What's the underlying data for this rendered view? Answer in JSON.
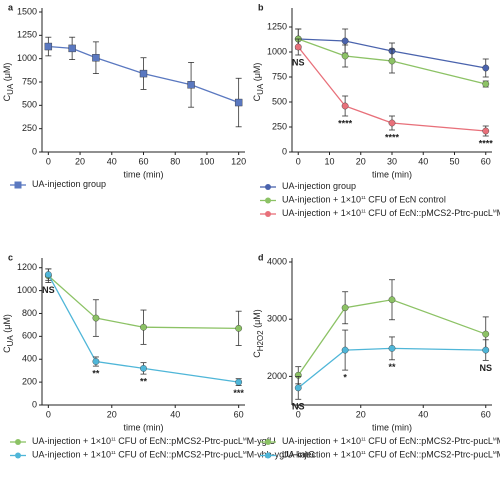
{
  "chart_data": [
    {
      "type": "line",
      "panel": "a",
      "x_label": "time (min)",
      "y_label": [
        "C",
        "UA",
        " (μM)"
      ],
      "x": [
        0,
        15,
        30,
        60,
        90,
        120
      ],
      "xlim": [
        -4,
        124
      ],
      "xticks": [
        0,
        20,
        40,
        60,
        80,
        100,
        120
      ],
      "ylim": [
        0,
        1500
      ],
      "yticks": [
        0,
        250,
        500,
        750,
        1000,
        1250,
        1500
      ],
      "marker": "square",
      "series": [
        {
          "name": [
            "UA-injection group"
          ],
          "color": "#5a78c0",
          "values": [
            1130,
            1110,
            1010,
            840,
            720,
            530
          ],
          "errors": [
            100,
            120,
            170,
            170,
            240,
            260
          ]
        }
      ],
      "annotations": []
    },
    {
      "type": "line",
      "panel": "b",
      "x_label": "time (min)",
      "y_label": [
        "C",
        "UA",
        " (μM)"
      ],
      "x": [
        0,
        15,
        30,
        60
      ],
      "xlim": [
        -2,
        62
      ],
      "xticks": [
        0,
        10,
        20,
        30,
        40,
        50,
        60
      ],
      "ylim": [
        0,
        1400
      ],
      "yticks": [
        0,
        250,
        500,
        750,
        1000,
        1250
      ],
      "marker": "circle",
      "series": [
        {
          "name": [
            "UA-injection group"
          ],
          "color": "#4a63ad",
          "values": [
            1130,
            1110,
            1010,
            840
          ],
          "errors": [
            100,
            120,
            80,
            90
          ]
        },
        {
          "name": [
            "UA-injection + 1×10",
            "11",
            " CFU of EcN control"
          ],
          "color": "#8cc265",
          "values": [
            1130,
            960,
            910,
            680
          ],
          "errors": [
            100,
            110,
            120,
            30
          ]
        },
        {
          "name": [
            "UA-injection + 1×10",
            "11",
            " CFU of EcN::pMCS2-Ptrc-pucL",
            "M",
            "M-vhb-ygfU-katG"
          ],
          "color": "#e8707a",
          "values": [
            1050,
            460,
            290,
            210
          ],
          "errors": [
            80,
            100,
            70,
            50
          ]
        }
      ],
      "annotations": [
        {
          "x": 0,
          "text": "NS"
        },
        {
          "x": 15,
          "text": "****"
        },
        {
          "x": 30,
          "text": "****"
        },
        {
          "x": 60,
          "text": "****"
        }
      ]
    },
    {
      "type": "line",
      "panel": "c",
      "x_label": "time (min)",
      "y_label": [
        "C",
        "UA",
        " (μM)"
      ],
      "x": [
        0,
        15,
        30,
        60
      ],
      "xlim": [
        -2,
        62
      ],
      "xticks": [
        0,
        20,
        40,
        60
      ],
      "ylim": [
        0,
        1250
      ],
      "yticks": [
        0,
        200,
        400,
        600,
        800,
        1000,
        1200
      ],
      "marker": "circle",
      "series": [
        {
          "name": [
            "UA-injection + 1×10",
            "11",
            " CFU of EcN::pMCS2-Ptrc-pucL",
            "M",
            "M-ygfU"
          ],
          "color": "#8cc265",
          "values": [
            1130,
            760,
            680,
            670
          ],
          "errors": [
            60,
            160,
            150,
            150
          ]
        },
        {
          "name": [
            "UA-injection + 1×10",
            "11",
            " CFU of EcN::pMCS2-Ptrc-pucL",
            "M",
            "M-vhb-ygfU-katG"
          ],
          "color": "#4fb6d8",
          "values": [
            1140,
            380,
            320,
            200
          ],
          "errors": [
            50,
            40,
            50,
            30
          ]
        }
      ],
      "annotations": [
        {
          "x": 0,
          "text": "NS"
        },
        {
          "x": 15,
          "text": "**"
        },
        {
          "x": 30,
          "text": "**"
        },
        {
          "x": 60,
          "text": "***"
        }
      ]
    },
    {
      "type": "line",
      "panel": "d",
      "x_label": "time (min)",
      "y_label": [
        "C",
        "H2O2",
        " (μM)"
      ],
      "x": [
        0,
        15,
        30,
        60
      ],
      "xlim": [
        -2,
        62
      ],
      "xticks": [
        0,
        20,
        40,
        60
      ],
      "ylim": [
        1500,
        4000
      ],
      "yticks": [
        2000,
        3000,
        4000
      ],
      "marker": "circle",
      "series": [
        {
          "name": [
            "UA-injection + 1×10",
            "11",
            " CFU of EcN::pMCS2-Ptrc-pucL",
            "M",
            "M-ygfU"
          ],
          "color": "#8cc265",
          "values": [
            2020,
            3200,
            3340,
            2740
          ],
          "errors": [
            150,
            280,
            350,
            300
          ]
        },
        {
          "name": [
            "UA-injection + 1×10",
            "11",
            " CFU of EcN::pMCS2-Ptrc-pucL",
            "M",
            "M-vhb-ygfU-katG"
          ],
          "color": "#4fb6d8",
          "values": [
            1800,
            2460,
            2490,
            2460
          ],
          "errors": [
            200,
            350,
            200,
            180
          ]
        }
      ],
      "annotations": [
        {
          "x": 0,
          "text": "NS"
        },
        {
          "x": 15,
          "text": "*"
        },
        {
          "x": 30,
          "text": "**"
        },
        {
          "x": 60,
          "text": "NS"
        }
      ]
    }
  ]
}
